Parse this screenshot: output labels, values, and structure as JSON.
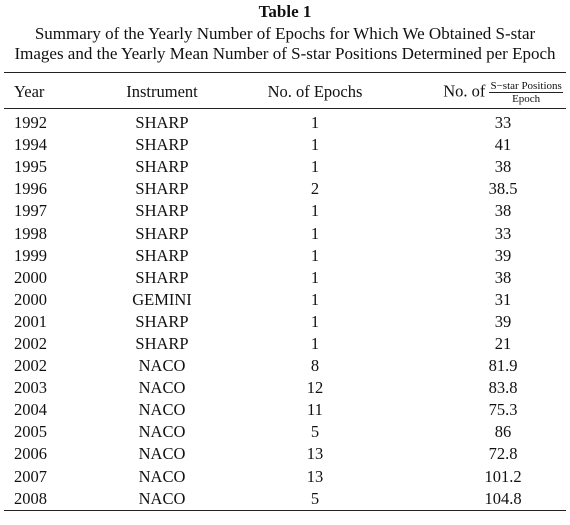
{
  "header": {
    "title": "Table 1",
    "caption": [
      "Summary of the Yearly Number of Epochs for Which We Obtained S-star",
      "Images and the Yearly Mean Number of S-star Positions Determined per Epoch"
    ]
  },
  "table": {
    "columns": [
      "Year",
      "Instrument",
      "No. of Epochs",
      {
        "prefix": "No. of",
        "numerator": "S−star Positions",
        "denominator": "Epoch"
      }
    ],
    "rows": [
      [
        "1992",
        "SHARP",
        "1",
        "33"
      ],
      [
        "1994",
        "SHARP",
        "1",
        "41"
      ],
      [
        "1995",
        "SHARP",
        "1",
        "38"
      ],
      [
        "1996",
        "SHARP",
        "2",
        "38.5"
      ],
      [
        "1997",
        "SHARP",
        "1",
        "38"
      ],
      [
        "1998",
        "SHARP",
        "1",
        "33"
      ],
      [
        "1999",
        "SHARP",
        "1",
        "39"
      ],
      [
        "2000",
        "SHARP",
        "1",
        "38"
      ],
      [
        "2000",
        "GEMINI",
        "1",
        "31"
      ],
      [
        "2001",
        "SHARP",
        "1",
        "39"
      ],
      [
        "2002",
        "SHARP",
        "1",
        "21"
      ],
      [
        "2002",
        "NACO",
        "8",
        "81.9"
      ],
      [
        "2003",
        "NACO",
        "12",
        "83.8"
      ],
      [
        "2004",
        "NACO",
        "11",
        "75.3"
      ],
      [
        "2005",
        "NACO",
        "5",
        "86"
      ],
      [
        "2006",
        "NACO",
        "13",
        "72.8"
      ],
      [
        "2007",
        "NACO",
        "13",
        "101.2"
      ],
      [
        "2008",
        "NACO",
        "5",
        "104.8"
      ]
    ]
  }
}
